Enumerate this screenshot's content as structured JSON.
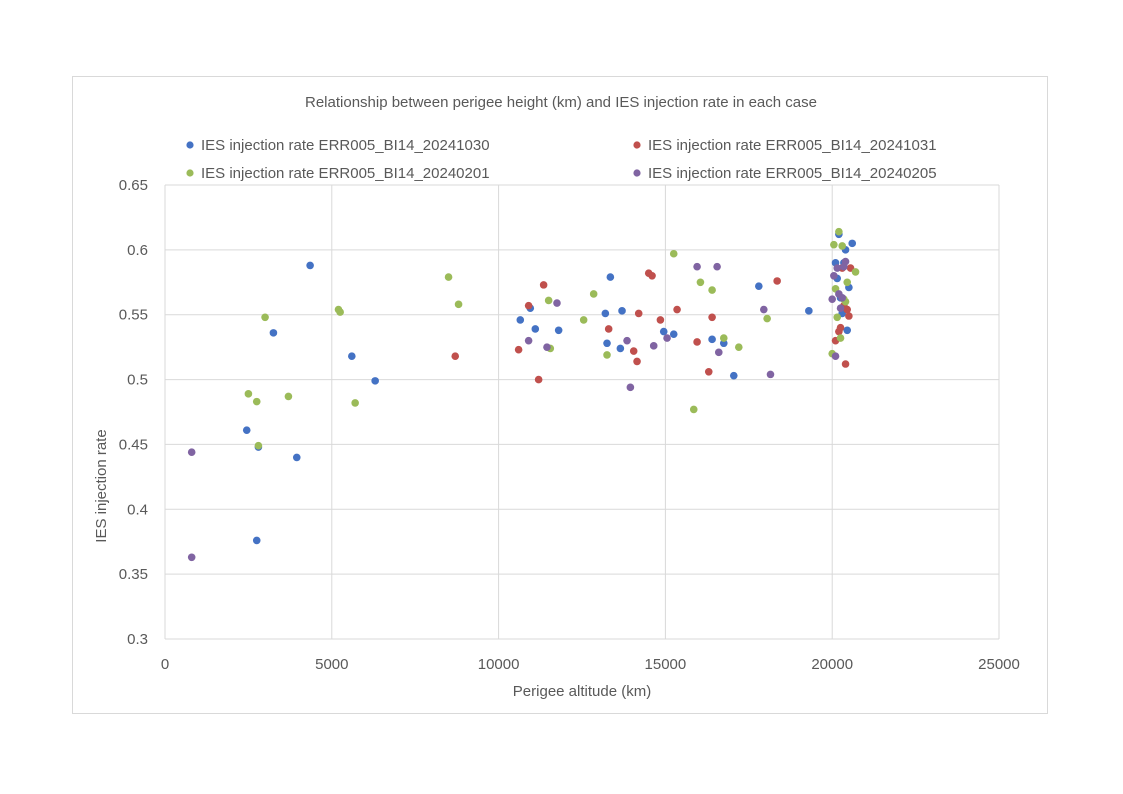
{
  "chart_data": {
    "type": "scatter",
    "title": "Relationship between perigee height (km) and IES injection rate in each case",
    "xlabel": "Perigee altitude (km)",
    "ylabel": "IES injection rate",
    "xlim": [
      0,
      25000
    ],
    "ylim": [
      0.3,
      0.65
    ],
    "x_ticks": [
      "0",
      "5000",
      "10000",
      "15000",
      "20000",
      "25000"
    ],
    "y_ticks": [
      "0.3",
      "0.35",
      "0.4",
      "0.45",
      "0.5",
      "0.55",
      "0.6",
      "0.65"
    ],
    "grid": true,
    "legend_position": "top",
    "series": [
      {
        "name": "IES injection rate ERR005_BI14_20241030",
        "color": "#4472c4",
        "points": [
          [
            2450,
            0.461
          ],
          [
            2800,
            0.448
          ],
          [
            2750,
            0.376
          ],
          [
            3250,
            0.536
          ],
          [
            3950,
            0.44
          ],
          [
            4350,
            0.588
          ],
          [
            5600,
            0.518
          ],
          [
            6300,
            0.499
          ],
          [
            10650,
            0.546
          ],
          [
            11100,
            0.539
          ],
          [
            10950,
            0.555
          ],
          [
            11800,
            0.538
          ],
          [
            13200,
            0.551
          ],
          [
            13250,
            0.528
          ],
          [
            13350,
            0.579
          ],
          [
            13650,
            0.524
          ],
          [
            13700,
            0.553
          ],
          [
            14950,
            0.537
          ],
          [
            15250,
            0.535
          ],
          [
            16400,
            0.531
          ],
          [
            16750,
            0.528
          ],
          [
            17050,
            0.503
          ],
          [
            17800,
            0.572
          ],
          [
            19300,
            0.553
          ],
          [
            20100,
            0.59
          ],
          [
            20150,
            0.578
          ],
          [
            20200,
            0.612
          ],
          [
            20250,
            0.563
          ],
          [
            20300,
            0.551
          ],
          [
            20350,
            0.59
          ],
          [
            20400,
            0.6
          ],
          [
            20450,
            0.538
          ],
          [
            20500,
            0.571
          ],
          [
            20600,
            0.605
          ]
        ]
      },
      {
        "name": "IES injection rate ERR005_BI14_20241031",
        "color": "#c0504d",
        "points": [
          [
            8700,
            0.518
          ],
          [
            10600,
            0.523
          ],
          [
            10900,
            0.557
          ],
          [
            11200,
            0.5
          ],
          [
            11350,
            0.573
          ],
          [
            13300,
            0.539
          ],
          [
            14050,
            0.522
          ],
          [
            14150,
            0.514
          ],
          [
            14200,
            0.551
          ],
          [
            14500,
            0.582
          ],
          [
            14600,
            0.58
          ],
          [
            14850,
            0.546
          ],
          [
            15350,
            0.554
          ],
          [
            15950,
            0.529
          ],
          [
            16300,
            0.506
          ],
          [
            16400,
            0.548
          ],
          [
            18350,
            0.576
          ],
          [
            20100,
            0.53
          ],
          [
            20200,
            0.537
          ],
          [
            20250,
            0.54
          ],
          [
            20300,
            0.586
          ],
          [
            20350,
            0.557
          ],
          [
            20400,
            0.512
          ],
          [
            20450,
            0.554
          ],
          [
            20500,
            0.549
          ],
          [
            20550,
            0.586
          ]
        ]
      },
      {
        "name": "IES injection rate ERR005_BI14_20240201",
        "color": "#9bbb59",
        "points": [
          [
            2500,
            0.489
          ],
          [
            2750,
            0.483
          ],
          [
            2800,
            0.449
          ],
          [
            3000,
            0.548
          ],
          [
            3700,
            0.487
          ],
          [
            5200,
            0.554
          ],
          [
            5250,
            0.552
          ],
          [
            5700,
            0.482
          ],
          [
            8500,
            0.579
          ],
          [
            8800,
            0.558
          ],
          [
            11500,
            0.561
          ],
          [
            11550,
            0.524
          ],
          [
            12550,
            0.546
          ],
          [
            12850,
            0.566
          ],
          [
            13250,
            0.519
          ],
          [
            15250,
            0.597
          ],
          [
            15850,
            0.477
          ],
          [
            16050,
            0.575
          ],
          [
            16400,
            0.569
          ],
          [
            16750,
            0.532
          ],
          [
            17200,
            0.525
          ],
          [
            18050,
            0.547
          ],
          [
            20000,
            0.52
          ],
          [
            20050,
            0.604
          ],
          [
            20100,
            0.57
          ],
          [
            20150,
            0.548
          ],
          [
            20200,
            0.614
          ],
          [
            20250,
            0.532
          ],
          [
            20300,
            0.603
          ],
          [
            20350,
            0.562
          ],
          [
            20400,
            0.56
          ],
          [
            20450,
            0.575
          ],
          [
            20700,
            0.583
          ]
        ]
      },
      {
        "name": "IES injection rate ERR005_BI14_20240205",
        "color": "#8064a2",
        "points": [
          [
            800,
            0.444
          ],
          [
            800,
            0.363
          ],
          [
            10900,
            0.53
          ],
          [
            11450,
            0.525
          ],
          [
            11750,
            0.559
          ],
          [
            13850,
            0.53
          ],
          [
            13950,
            0.494
          ],
          [
            14650,
            0.526
          ],
          [
            15050,
            0.532
          ],
          [
            15950,
            0.587
          ],
          [
            16550,
            0.587
          ],
          [
            16600,
            0.521
          ],
          [
            17950,
            0.554
          ],
          [
            18150,
            0.504
          ],
          [
            20000,
            0.562
          ],
          [
            20050,
            0.58
          ],
          [
            20100,
            0.518
          ],
          [
            20150,
            0.586
          ],
          [
            20200,
            0.566
          ],
          [
            20250,
            0.555
          ],
          [
            20300,
            0.563
          ],
          [
            20350,
            0.587
          ],
          [
            20400,
            0.591
          ]
        ]
      }
    ]
  }
}
